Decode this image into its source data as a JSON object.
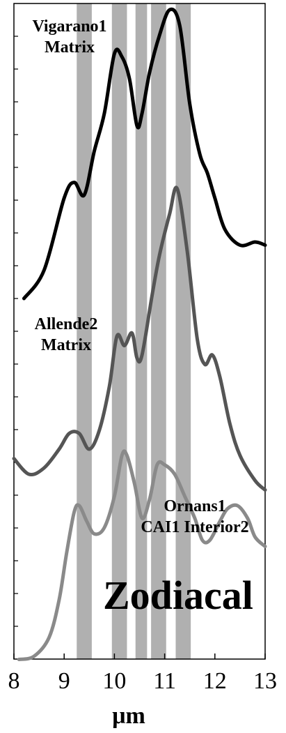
{
  "chart_data": {
    "type": "line",
    "xlabel": "μm",
    "xlim": [
      8,
      13
    ],
    "x_ticks": [
      "8",
      "9",
      "10",
      "11",
      "12",
      "13"
    ],
    "y_ticks_labeled": false,
    "bands": [
      [
        9.25,
        9.55
      ],
      [
        9.95,
        10.25
      ],
      [
        10.42,
        10.65
      ],
      [
        10.73,
        11.03
      ],
      [
        11.22,
        11.52
      ]
    ],
    "band_color": "#b0b0b0",
    "series": [
      {
        "label_lines": [
          "Vigarano1",
          "Matrix"
        ],
        "color": "#000000",
        "points": [
          [
            8.2,
            0.94
          ],
          [
            8.6,
            0.85
          ],
          [
            9.0,
            0.62
          ],
          [
            9.2,
            0.57
          ],
          [
            9.4,
            0.61
          ],
          [
            9.6,
            0.47
          ],
          [
            9.8,
            0.35
          ],
          [
            10.0,
            0.16
          ],
          [
            10.15,
            0.17
          ],
          [
            10.3,
            0.24
          ],
          [
            10.45,
            0.39
          ],
          [
            10.55,
            0.35
          ],
          [
            10.7,
            0.22
          ],
          [
            10.9,
            0.1
          ],
          [
            11.1,
            0.02
          ],
          [
            11.3,
            0.07
          ],
          [
            11.5,
            0.32
          ],
          [
            11.7,
            0.48
          ],
          [
            11.85,
            0.54
          ],
          [
            12.0,
            0.62
          ],
          [
            12.2,
            0.72
          ],
          [
            12.5,
            0.77
          ],
          [
            12.8,
            0.76
          ],
          [
            13.0,
            0.77
          ]
        ]
      },
      {
        "label_lines": [
          "Allende2",
          "Matrix"
        ],
        "color": "#555555",
        "points": [
          [
            8.0,
            1.45
          ],
          [
            8.3,
            1.5
          ],
          [
            8.6,
            1.48
          ],
          [
            8.9,
            1.42
          ],
          [
            9.1,
            1.37
          ],
          [
            9.3,
            1.37
          ],
          [
            9.5,
            1.42
          ],
          [
            9.7,
            1.36
          ],
          [
            9.9,
            1.22
          ],
          [
            10.05,
            1.06
          ],
          [
            10.2,
            1.09
          ],
          [
            10.35,
            1.05
          ],
          [
            10.45,
            1.13
          ],
          [
            10.55,
            1.12
          ],
          [
            10.75,
            0.93
          ],
          [
            10.9,
            0.8
          ],
          [
            11.1,
            0.67
          ],
          [
            11.25,
            0.59
          ],
          [
            11.45,
            0.79
          ],
          [
            11.65,
            1.07
          ],
          [
            11.8,
            1.15
          ],
          [
            11.95,
            1.12
          ],
          [
            12.1,
            1.19
          ],
          [
            12.3,
            1.34
          ],
          [
            12.5,
            1.44
          ],
          [
            12.8,
            1.52
          ],
          [
            13.0,
            1.55
          ]
        ]
      },
      {
        "label_lines": [
          "Ornans1",
          "CAI1 Interior2"
        ],
        "color": "#8a8a8a",
        "points": [
          [
            8.1,
            2.09
          ],
          [
            8.4,
            2.08
          ],
          [
            8.7,
            2.02
          ],
          [
            8.9,
            1.9
          ],
          [
            9.05,
            1.75
          ],
          [
            9.2,
            1.62
          ],
          [
            9.3,
            1.6
          ],
          [
            9.45,
            1.65
          ],
          [
            9.6,
            1.69
          ],
          [
            9.8,
            1.67
          ],
          [
            10.0,
            1.57
          ],
          [
            10.15,
            1.44
          ],
          [
            10.25,
            1.44
          ],
          [
            10.4,
            1.53
          ],
          [
            10.55,
            1.64
          ],
          [
            10.7,
            1.58
          ],
          [
            10.85,
            1.47
          ],
          [
            11.0,
            1.47
          ],
          [
            11.2,
            1.5
          ],
          [
            11.4,
            1.57
          ],
          [
            11.6,
            1.64
          ],
          [
            11.75,
            1.71
          ],
          [
            11.9,
            1.71
          ],
          [
            12.1,
            1.65
          ],
          [
            12.25,
            1.61
          ],
          [
            12.45,
            1.6
          ],
          [
            12.65,
            1.64
          ],
          [
            12.8,
            1.7
          ],
          [
            13.0,
            1.73
          ]
        ]
      }
    ],
    "annotation": "Zodiacal"
  }
}
